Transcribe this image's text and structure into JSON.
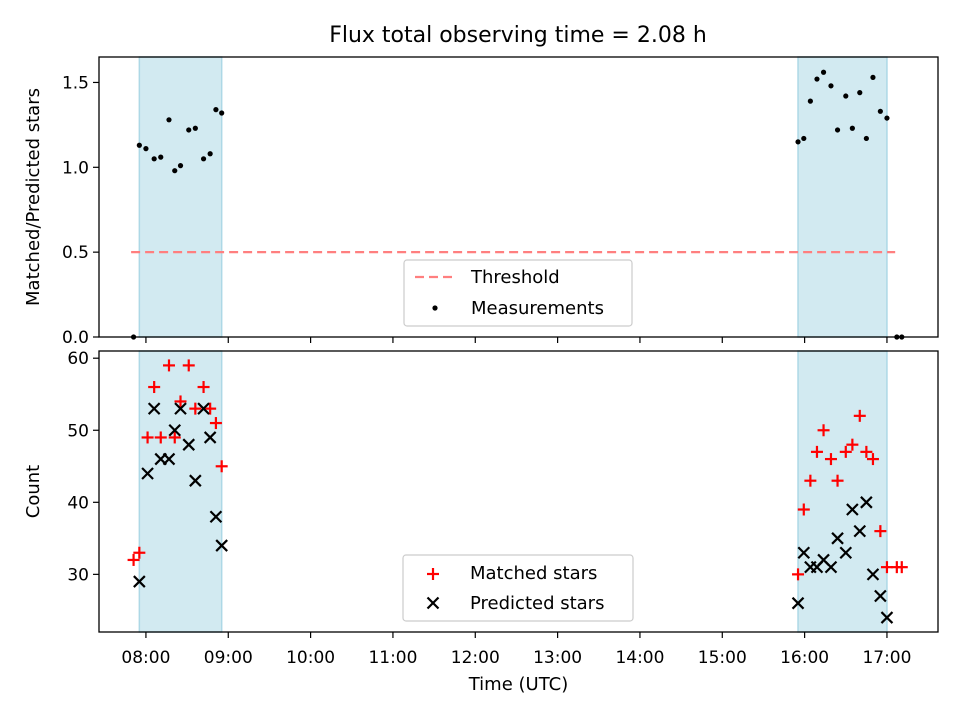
{
  "title": "Flux total observing time = 2.08 h",
  "xlabel": "Time (UTC)",
  "x_ticks": [
    "08:00",
    "09:00",
    "10:00",
    "11:00",
    "12:00",
    "13:00",
    "14:00",
    "15:00",
    "16:00",
    "17:00"
  ],
  "colors": {
    "shade": "#add8e6",
    "threshold": "#ff7f7f",
    "matched": "#ff0000",
    "predicted": "#000000",
    "measure": "#000000"
  },
  "chart_data": [
    {
      "type": "scatter",
      "ylabel": "Matched/Predicted stars",
      "xlim": [
        7.43,
        17.62
      ],
      "ylim": [
        0,
        1.65
      ],
      "y_ticks": [
        "0.0",
        "0.5",
        "1.0",
        "1.5"
      ],
      "y_tick_values": [
        0,
        0.5,
        1.0,
        1.5
      ],
      "shaded_intervals": [
        [
          7.92,
          8.92
        ],
        [
          15.92,
          17.0
        ]
      ],
      "threshold": {
        "label": "Threshold",
        "value": 0.5,
        "x_range": [
          7.82,
          17.1
        ]
      },
      "measurements": {
        "label": "Measurements",
        "x": [
          7.85,
          7.92,
          8.0,
          8.1,
          8.18,
          8.28,
          8.35,
          8.42,
          8.52,
          8.6,
          8.7,
          8.78,
          8.85,
          8.92,
          15.92,
          15.99,
          16.07,
          16.15,
          16.23,
          16.32,
          16.4,
          16.5,
          16.58,
          16.67,
          16.75,
          16.83,
          16.92,
          17.0,
          17.12,
          17.18
        ],
        "y": [
          0.0,
          1.13,
          1.11,
          1.05,
          1.06,
          1.28,
          0.98,
          1.01,
          1.22,
          1.23,
          1.05,
          1.08,
          1.34,
          1.32,
          1.15,
          1.17,
          1.39,
          1.52,
          1.56,
          1.48,
          1.22,
          1.42,
          1.23,
          1.44,
          1.17,
          1.53,
          1.33,
          1.29,
          0.0,
          0.0
        ]
      },
      "legend": [
        "Threshold",
        "Measurements"
      ]
    },
    {
      "type": "scatter",
      "ylabel": "Count",
      "xlim": [
        7.43,
        17.62
      ],
      "ylim": [
        22,
        61
      ],
      "y_ticks": [
        "30",
        "40",
        "50",
        "60"
      ],
      "y_tick_values": [
        30,
        40,
        50,
        60
      ],
      "shaded_intervals": [
        [
          7.92,
          8.92
        ],
        [
          15.92,
          17.0
        ]
      ],
      "series": [
        {
          "name": "Matched stars",
          "marker": "+",
          "x": [
            7.85,
            7.92,
            8.02,
            8.1,
            8.18,
            8.28,
            8.35,
            8.42,
            8.52,
            8.6,
            8.7,
            8.78,
            8.85,
            8.92,
            15.92,
            15.99,
            16.07,
            16.15,
            16.23,
            16.32,
            16.4,
            16.5,
            16.58,
            16.67,
            16.75,
            16.83,
            16.92,
            17.0,
            17.12,
            17.18
          ],
          "y": [
            32,
            33,
            49,
            56,
            49,
            59,
            49,
            54,
            59,
            53,
            56,
            53,
            51,
            45,
            30,
            39,
            43,
            47,
            50,
            46,
            43,
            47,
            48,
            52,
            47,
            46,
            36,
            31,
            31,
            31
          ]
        },
        {
          "name": "Predicted stars",
          "marker": "x",
          "x": [
            7.92,
            8.02,
            8.1,
            8.18,
            8.28,
            8.35,
            8.42,
            8.52,
            8.6,
            8.7,
            8.78,
            8.85,
            8.92,
            15.92,
            15.99,
            16.07,
            16.15,
            16.23,
            16.32,
            16.4,
            16.5,
            16.58,
            16.67,
            16.75,
            16.83,
            16.92,
            17.0
          ],
          "y": [
            29,
            44,
            53,
            46,
            46,
            50,
            53,
            48,
            43,
            53,
            49,
            38,
            34,
            26,
            33,
            31,
            31,
            32,
            31,
            35,
            33,
            39,
            36,
            40,
            30,
            27,
            24
          ]
        }
      ],
      "legend": [
        "Matched stars",
        "Predicted stars"
      ]
    }
  ]
}
